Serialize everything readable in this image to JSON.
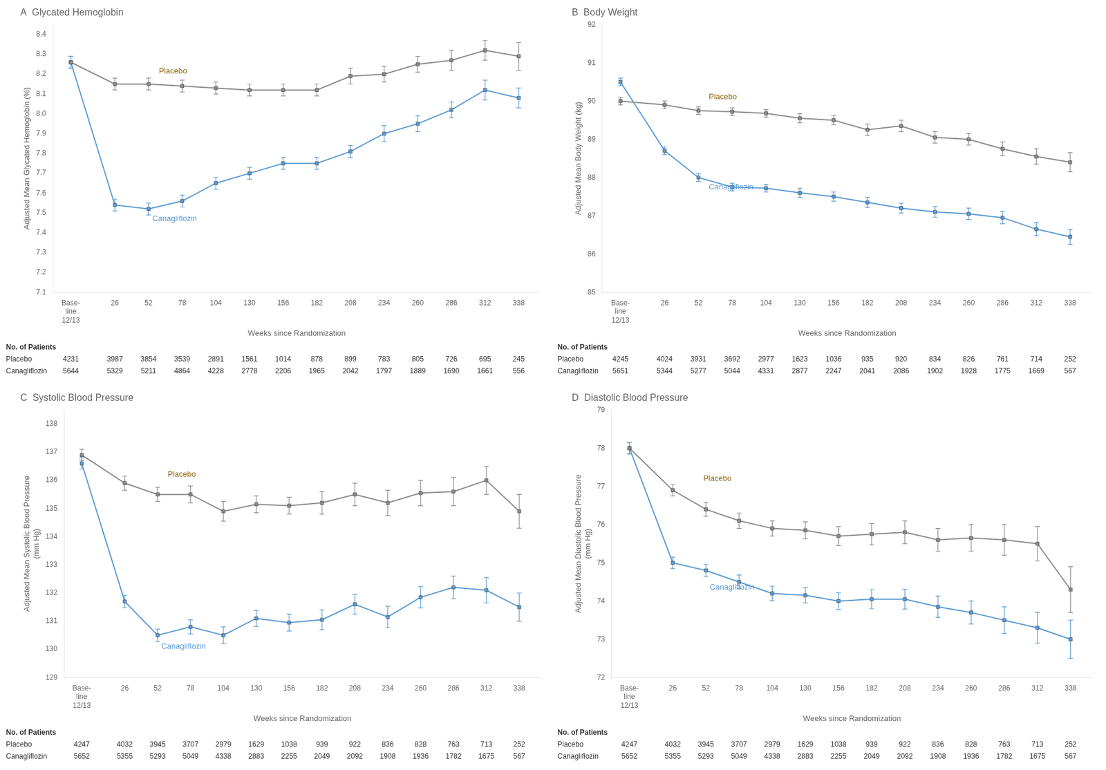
{
  "chart_data": [
    {
      "type": "line",
      "title": "A  Glycated Hemoglobin",
      "x_label": "Weeks since Randomization",
      "y_label": "Adjusted Mean Glycated Hemoglobin (%)",
      "x": [
        -8,
        26,
        52,
        78,
        104,
        130,
        156,
        182,
        208,
        234,
        260,
        286,
        312,
        338
      ],
      "xlim": [
        -22,
        355
      ],
      "xticks": [
        {
          "value": -8,
          "label": "Base-\nline\n12/13"
        },
        26,
        52,
        78,
        104,
        130,
        156,
        182,
        208,
        234,
        260,
        286,
        312,
        338
      ],
      "ylim": [
        7.1,
        8.45
      ],
      "yticks": [
        7.1,
        7.2,
        7.3,
        7.4,
        7.5,
        7.6,
        7.7,
        7.8,
        7.9,
        {
          "value": 8.0,
          "label": "8.0"
        },
        8.1,
        8.2,
        8.3,
        8.4
      ],
      "grid": false,
      "series": [
        {
          "name": "Placebo",
          "color": "#8C8C8C",
          "marker": "square",
          "values": [
            8.26,
            8.15,
            8.15,
            8.14,
            8.13,
            8.12,
            8.12,
            8.12,
            8.19,
            8.2,
            8.25,
            8.27,
            8.32,
            8.29
          ],
          "errors": [
            0.03,
            0.03,
            0.03,
            0.03,
            0.03,
            0.03,
            0.03,
            0.03,
            0.04,
            0.04,
            0.04,
            0.05,
            0.05,
            0.07
          ],
          "patients": [
            "4231",
            "3987",
            "3854",
            "3539",
            "2891",
            "1561",
            "1014",
            "878",
            "899",
            "783",
            "805",
            "726",
            "695",
            "245"
          ]
        },
        {
          "name": "Canagliflozin",
          "color": "#5B9BD5",
          "marker": "square",
          "values": [
            8.26,
            7.54,
            7.52,
            7.56,
            7.65,
            7.7,
            7.75,
            7.75,
            7.81,
            7.9,
            7.95,
            8.02,
            8.12,
            8.08
          ],
          "errors": [
            0.03,
            0.03,
            0.03,
            0.03,
            0.03,
            0.03,
            0.03,
            0.03,
            0.03,
            0.04,
            0.04,
            0.04,
            0.05,
            0.05
          ],
          "patients": [
            "5644",
            "5329",
            "5211",
            "4864",
            "4228",
            "2778",
            "2206",
            "1965",
            "2042",
            "1797",
            "1889",
            "1690",
            "1661",
            "556"
          ]
        }
      ],
      "annotations": [
        {
          "text": "Placebo",
          "x": 60,
          "y": 8.215,
          "color": "#8C6914"
        },
        {
          "text": "Canagliflozin",
          "x": 55,
          "y": 7.47,
          "color": "#5B9BD5"
        }
      ],
      "patients_title": "No. of Patients"
    },
    {
      "type": "line",
      "title": "B  Body Weight",
      "x_label": "Weeks since Randomization",
      "y_label": "Adjusted Mean Body Weight (kg)",
      "x": [
        -8,
        26,
        52,
        78,
        104,
        130,
        156,
        182,
        208,
        234,
        260,
        286,
        312,
        338
      ],
      "xlim": [
        -22,
        355
      ],
      "xticks": [
        {
          "value": -8,
          "label": "Base-\nline\n12/13"
        },
        26,
        52,
        78,
        104,
        130,
        156,
        182,
        208,
        234,
        260,
        286,
        312,
        338
      ],
      "ylim": [
        85.0,
        92.0
      ],
      "yticks": [
        85,
        86,
        87,
        88,
        89,
        90,
        91,
        92
      ],
      "grid": false,
      "series": [
        {
          "name": "Placebo",
          "color": "#8C8C8C",
          "marker": "square",
          "values": [
            90.0,
            89.9,
            89.75,
            89.72,
            89.68,
            89.55,
            89.5,
            89.25,
            89.35,
            89.05,
            89.0,
            88.75,
            88.55,
            88.4
          ],
          "errors": [
            0.1,
            0.1,
            0.1,
            0.1,
            0.1,
            0.12,
            0.12,
            0.15,
            0.15,
            0.15,
            0.15,
            0.18,
            0.2,
            0.25
          ],
          "patients": [
            "4245",
            "4024",
            "3931",
            "3692",
            "2977",
            "1623",
            "1036",
            "935",
            "920",
            "834",
            "826",
            "761",
            "714",
            "252"
          ]
        },
        {
          "name": "Canagliflozin",
          "color": "#5B9BD5",
          "marker": "square",
          "values": [
            90.5,
            88.7,
            88.0,
            87.75,
            87.72,
            87.6,
            87.5,
            87.35,
            87.2,
            87.1,
            87.05,
            86.95,
            86.65,
            86.45
          ],
          "errors": [
            0.1,
            0.1,
            0.1,
            0.1,
            0.1,
            0.12,
            0.12,
            0.13,
            0.13,
            0.14,
            0.15,
            0.16,
            0.17,
            0.2
          ],
          "patients": [
            "5651",
            "5344",
            "5277",
            "5044",
            "4331",
            "2877",
            "2247",
            "2041",
            "2086",
            "1902",
            "1928",
            "1775",
            "1669",
            "567"
          ]
        }
      ],
      "annotations": [
        {
          "text": "Placebo",
          "x": 60,
          "y": 90.1,
          "color": "#8C6914"
        },
        {
          "text": "Canagliflozin",
          "x": 60,
          "y": 87.75,
          "color": "#5B9BD5"
        }
      ],
      "patients_title": "No. of Patients"
    },
    {
      "type": "line",
      "title": "C  Systolic Blood Pressure",
      "x_label": "Weeks since Randomization",
      "y_label": "Adjusted Mean Systolic Blood Pressure\n(mm Hg)",
      "x": [
        -8,
        26,
        52,
        78,
        104,
        130,
        156,
        182,
        208,
        234,
        260,
        286,
        312,
        338
      ],
      "xlim": [
        -22,
        355
      ],
      "xticks": [
        {
          "value": -8,
          "label": "Base-\nline\n12/13"
        },
        26,
        52,
        78,
        104,
        130,
        156,
        182,
        208,
        234,
        260,
        286,
        312,
        338
      ],
      "ylim": [
        129.0,
        138.5
      ],
      "yticks": [
        129,
        130,
        131,
        132,
        133,
        134,
        135,
        136,
        137,
        138
      ],
      "grid": false,
      "series": [
        {
          "name": "Placebo",
          "color": "#8C8C8C",
          "marker": "square",
          "values": [
            136.9,
            135.9,
            135.5,
            135.5,
            134.9,
            135.15,
            135.1,
            135.2,
            135.5,
            135.2,
            135.55,
            135.6,
            136.0,
            134.9
          ],
          "errors": [
            0.2,
            0.25,
            0.25,
            0.3,
            0.35,
            0.3,
            0.3,
            0.4,
            0.4,
            0.45,
            0.45,
            0.5,
            0.5,
            0.6
          ],
          "patients": [
            "4247",
            "4032",
            "3945",
            "3707",
            "2979",
            "1629",
            "1038",
            "939",
            "922",
            "836",
            "828",
            "763",
            "713",
            "252"
          ]
        },
        {
          "name": "Canagliflozin",
          "color": "#5B9BD5",
          "marker": "square",
          "values": [
            136.6,
            131.7,
            130.5,
            130.8,
            130.5,
            131.1,
            130.95,
            131.05,
            131.6,
            131.15,
            131.85,
            132.2,
            132.1,
            131.5
          ],
          "errors": [
            0.2,
            0.22,
            0.22,
            0.25,
            0.3,
            0.28,
            0.3,
            0.35,
            0.35,
            0.38,
            0.38,
            0.4,
            0.45,
            0.5
          ],
          "patients": [
            "5652",
            "5355",
            "5293",
            "5049",
            "4338",
            "2883",
            "2255",
            "2049",
            "2092",
            "1908",
            "1936",
            "1782",
            "1675",
            "567"
          ]
        }
      ],
      "annotations": [
        {
          "text": "Placebo",
          "x": 60,
          "y": 136.2,
          "color": "#8C6914"
        },
        {
          "text": "Canagliflozin",
          "x": 55,
          "y": 130.1,
          "color": "#5B9BD5"
        }
      ],
      "patients_title": "No. of Patients"
    },
    {
      "type": "line",
      "title": "D  Diastolic Blood Pressure",
      "x_label": "Weeks since Randomization",
      "y_label": "Adjusted Mean Diastolic Blood Pressure\n(mm Hg)",
      "x": [
        -8,
        26,
        52,
        78,
        104,
        130,
        156,
        182,
        208,
        234,
        260,
        286,
        312,
        338
      ],
      "xlim": [
        -22,
        355
      ],
      "xticks": [
        {
          "value": -8,
          "label": "Base-\nline\n12/13"
        },
        26,
        52,
        78,
        104,
        130,
        156,
        182,
        208,
        234,
        260,
        286,
        312,
        338
      ],
      "ylim": [
        72.0,
        79.0
      ],
      "yticks": [
        72,
        73,
        74,
        75,
        76,
        77,
        78,
        79
      ],
      "grid": false,
      "series": [
        {
          "name": "Placebo",
          "color": "#8C8C8C",
          "marker": "square",
          "values": [
            78.0,
            76.9,
            76.4,
            76.1,
            75.9,
            75.85,
            75.7,
            75.75,
            75.8,
            75.6,
            75.65,
            75.6,
            75.5,
            74.3
          ],
          "errors": [
            0.15,
            0.15,
            0.18,
            0.2,
            0.2,
            0.22,
            0.25,
            0.28,
            0.3,
            0.3,
            0.35,
            0.4,
            0.45,
            0.6
          ],
          "patients": [
            "4247",
            "4032",
            "3945",
            "3707",
            "2979",
            "1629",
            "1038",
            "939",
            "922",
            "836",
            "828",
            "763",
            "713",
            "252"
          ]
        },
        {
          "name": "Canagliflozin",
          "color": "#5B9BD5",
          "marker": "square",
          "values": [
            78.0,
            75.0,
            74.8,
            74.5,
            74.2,
            74.15,
            74.0,
            74.05,
            74.05,
            73.85,
            73.7,
            73.5,
            73.3,
            73.0
          ],
          "errors": [
            0.15,
            0.15,
            0.16,
            0.18,
            0.19,
            0.2,
            0.22,
            0.25,
            0.26,
            0.28,
            0.3,
            0.35,
            0.4,
            0.5
          ],
          "patients": [
            "5652",
            "5355",
            "5293",
            "5049",
            "4338",
            "2883",
            "2255",
            "2049",
            "2092",
            "1908",
            "1936",
            "1782",
            "1675",
            "567"
          ]
        }
      ],
      "annotations": [
        {
          "text": "Placebo",
          "x": 50,
          "y": 77.2,
          "color": "#8C6914"
        },
        {
          "text": "Canagliflozin",
          "x": 55,
          "y": 74.35,
          "color": "#5B9BD5"
        }
      ],
      "patients_title": "No. of Patients"
    }
  ]
}
